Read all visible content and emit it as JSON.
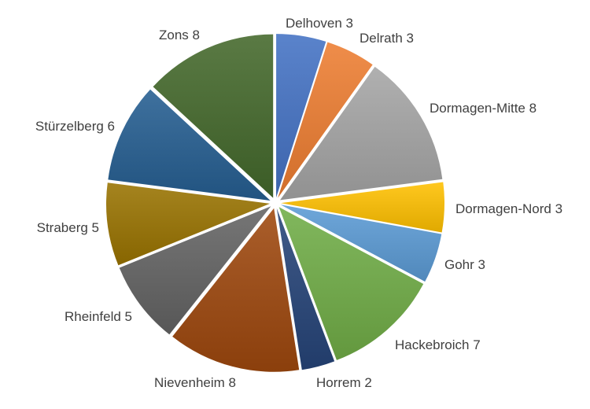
{
  "chart_data": {
    "type": "pie",
    "title": "",
    "legend": "none",
    "slices": [
      {
        "name": "Delhoven",
        "value": 3,
        "label": "Delhoven 3",
        "color": "#4472C4"
      },
      {
        "name": "Delrath",
        "value": 3,
        "label": "Delrath 3",
        "color": "#ED7D31"
      },
      {
        "name": "Dormagen-Mitte",
        "value": 8,
        "label": "Dormagen-Mitte 8",
        "color": "#A5A5A5"
      },
      {
        "name": "Dormagen-Nord",
        "value": 3,
        "label": "Dormagen-Nord 3",
        "color": "#FFC000"
      },
      {
        "name": "Gohr",
        "value": 3,
        "label": "Gohr 3",
        "color": "#5B9BD5"
      },
      {
        "name": "Hackebroich",
        "value": 7,
        "label": "Hackebroich 7",
        "color": "#70AD47"
      },
      {
        "name": "Horrem",
        "value": 2,
        "label": "Horrem 2",
        "color": "#264478"
      },
      {
        "name": "Nievenheim",
        "value": 8,
        "label": "Nievenheim 8",
        "color": "#9E480E"
      },
      {
        "name": "Rheinfeld",
        "value": 5,
        "label": "Rheinfeld 5",
        "color": "#636363"
      },
      {
        "name": "Straberg",
        "value": 5,
        "label": "Straberg 5",
        "color": "#997300"
      },
      {
        "name": "Stürzelberg",
        "value": 6,
        "label": "Stürzelberg 6",
        "color": "#255E91"
      },
      {
        "name": "Zons",
        "value": 8,
        "label": "Zons 8",
        "color": "#43682B"
      }
    ]
  }
}
